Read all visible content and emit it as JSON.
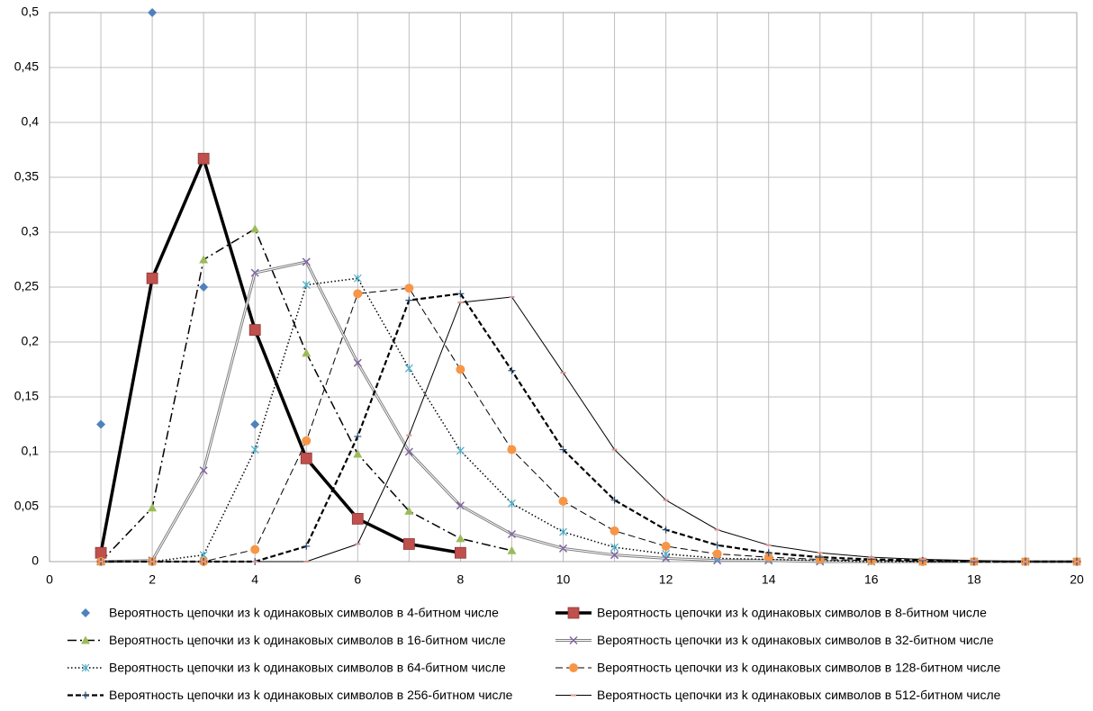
{
  "chart_data": {
    "type": "line",
    "x": [
      1,
      2,
      3,
      4,
      5,
      6,
      7,
      8,
      9,
      10,
      11,
      12,
      13,
      14,
      15,
      16,
      17,
      18,
      19,
      20
    ],
    "xlim": [
      0,
      20
    ],
    "xticks": [
      0,
      2,
      4,
      6,
      8,
      10,
      12,
      14,
      16,
      18,
      20
    ],
    "ylim": [
      0,
      0.5
    ],
    "yticks": [
      0,
      {
        "value": 0.05,
        "label": "0,05"
      },
      {
        "value": 0.1,
        "label": "0,1"
      },
      {
        "value": 0.15,
        "label": "0,15"
      },
      {
        "value": 0.2,
        "label": "0,2"
      },
      {
        "value": 0.25,
        "label": "0,25"
      },
      {
        "value": 0.3,
        "label": "0,3"
      },
      {
        "value": 0.35,
        "label": "0,35"
      },
      {
        "value": 0.4,
        "label": "0,4"
      },
      {
        "value": 0.45,
        "label": "0,45"
      },
      {
        "value": 0.5,
        "label": "0,5"
      }
    ],
    "grid": true,
    "legend": "bottom",
    "series": [
      {
        "name": "Вероятность цепочки из k одинаковых символов в 4-битном числе",
        "color": "#4f81bd",
        "marker": "diamond",
        "line": "none",
        "values": [
          0.125,
          0.5,
          0.25,
          0.125,
          null,
          null,
          null,
          null,
          null,
          null,
          null,
          null,
          null,
          null,
          null,
          null,
          null,
          null,
          null,
          null
        ]
      },
      {
        "name": "Вероятность цепочки из k одинаковых символов в 8-битном числе",
        "color": "#c0504d",
        "marker": "square",
        "line": "thick-solid",
        "values": [
          0.008,
          0.258,
          0.367,
          0.211,
          0.094,
          0.039,
          0.016,
          0.008,
          null,
          null,
          null,
          null,
          null,
          null,
          null,
          null,
          null,
          null,
          null,
          null
        ]
      },
      {
        "name": "Вероятность цепочки из k одинаковых символов в 16-битном числе",
        "color": "#9bbb59",
        "marker": "triangle",
        "line": "dash-dot",
        "values": [
          0,
          0.049,
          0.275,
          0.303,
          0.19,
          0.098,
          0.046,
          0.021,
          0.01,
          null,
          null,
          null,
          null,
          null,
          null,
          null,
          null,
          null,
          null,
          null
        ]
      },
      {
        "name": "Вероятность цепочки из k одинаковых символов в 32-битном числе",
        "color": "#8064a2",
        "marker": "x",
        "line": "double",
        "values": [
          0,
          0.001,
          0.083,
          0.263,
          0.273,
          0.181,
          0.1,
          0.051,
          0.025,
          0.012,
          0.006,
          0.003,
          0.001,
          0.001,
          0,
          0,
          0,
          0,
          0,
          0
        ]
      },
      {
        "name": "Вероятность цепочки из k одинаковых символов в 64-битном числе",
        "color": "#4bacc6",
        "marker": "asterisk",
        "line": "dotted",
        "values": [
          0,
          0,
          0.006,
          0.102,
          0.252,
          0.258,
          0.176,
          0.101,
          0.053,
          0.027,
          0.013,
          0.007,
          0.003,
          0.002,
          0.001,
          0,
          0,
          0,
          0,
          0
        ]
      },
      {
        "name": "Вероятность цепочки из k одинаковых символов в 128-битном числе",
        "color": "#f79646",
        "marker": "circle",
        "line": "dashed",
        "values": [
          0,
          0,
          0,
          0.011,
          0.11,
          0.244,
          0.249,
          0.175,
          0.102,
          0.055,
          0.028,
          0.014,
          0.007,
          0.004,
          0.002,
          0.001,
          0,
          0,
          0,
          0
        ]
      },
      {
        "name": "Вероятность цепочки из k одинаковых символов в 256-битном числе",
        "color": "#2c4d75",
        "marker": "plus",
        "line": "thick-dashed",
        "values": [
          0,
          0,
          0,
          0,
          0.014,
          0.114,
          0.238,
          0.244,
          0.174,
          0.102,
          0.056,
          0.029,
          0.015,
          0.008,
          0.004,
          0.002,
          0.001,
          0,
          0,
          0
        ]
      },
      {
        "name": "Вероятность цепочки из k одинаковых символов в 512-битном числе",
        "color": "#d99694",
        "marker": "dash",
        "line": "thin-solid",
        "values": [
          0,
          0,
          0,
          0,
          0,
          0.016,
          0.115,
          0.236,
          0.241,
          0.172,
          0.102,
          0.056,
          0.029,
          0.015,
          0.008,
          0.004,
          0.002,
          0.001,
          0,
          0
        ]
      }
    ]
  }
}
